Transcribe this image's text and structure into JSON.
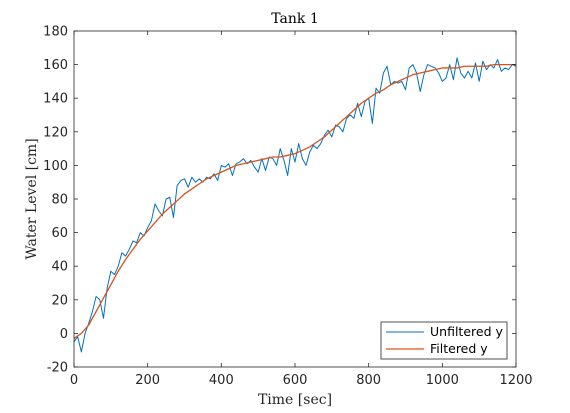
{
  "chart_data": {
    "type": "line",
    "title": "Tank 1",
    "xlabel": "Time [sec]",
    "ylabel": "Water Level [cm]",
    "xlim": [
      0,
      1200
    ],
    "ylim": [
      -20,
      180
    ],
    "xticks": [
      0,
      200,
      400,
      600,
      800,
      1000,
      1200
    ],
    "yticks": [
      -20,
      0,
      20,
      40,
      60,
      80,
      100,
      120,
      140,
      160,
      180
    ],
    "grid": false,
    "legend_location": "bottom-right",
    "series": [
      {
        "name": "Unfiltered y",
        "color": "#0072BD",
        "x": [
          0,
          10,
          20,
          30,
          40,
          50,
          60,
          70,
          80,
          90,
          100,
          110,
          120,
          130,
          140,
          150,
          160,
          170,
          180,
          190,
          200,
          210,
          220,
          230,
          240,
          250,
          260,
          270,
          280,
          290,
          300,
          310,
          320,
          330,
          340,
          350,
          360,
          370,
          380,
          390,
          400,
          410,
          420,
          430,
          440,
          450,
          460,
          470,
          480,
          490,
          500,
          510,
          520,
          530,
          540,
          550,
          560,
          570,
          580,
          590,
          600,
          610,
          620,
          630,
          640,
          650,
          660,
          670,
          680,
          690,
          700,
          710,
          720,
          730,
          740,
          750,
          760,
          770,
          780,
          790,
          800,
          810,
          820,
          830,
          840,
          850,
          860,
          870,
          880,
          890,
          900,
          910,
          920,
          930,
          940,
          950,
          960,
          970,
          980,
          990,
          1000,
          1010,
          1020,
          1030,
          1040,
          1050,
          1060,
          1070,
          1080,
          1090,
          1100,
          1110,
          1120,
          1130,
          1140,
          1150,
          1160,
          1170,
          1180,
          1190,
          1200
        ],
        "y": [
          -5,
          -2,
          -11,
          0,
          6,
          13,
          22,
          20,
          9,
          27,
          37,
          35,
          40,
          48,
          46,
          50,
          55,
          54,
          60,
          58,
          63,
          67,
          77,
          73,
          70,
          80,
          81,
          69,
          88,
          91,
          92,
          87,
          93,
          90,
          92,
          90,
          93,
          92,
          95,
          91,
          100,
          99,
          101,
          94,
          101,
          102,
          104,
          101,
          103,
          99,
          96,
          104,
          97,
          105,
          104,
          100,
          110,
          103,
          94,
          110,
          102,
          113,
          104,
          100,
          108,
          112,
          110,
          113,
          118,
          121,
          117,
          124,
          123,
          120,
          128,
          130,
          128,
          137,
          129,
          138,
          140,
          125,
          146,
          143,
          155,
          159,
          148,
          150,
          149,
          150,
          145,
          158,
          160,
          155,
          144,
          154,
          160,
          159,
          158,
          155,
          150,
          152,
          160,
          151,
          164,
          155,
          152,
          156,
          152,
          161,
          150,
          162,
          157,
          160,
          158,
          163,
          156,
          158,
          157,
          160,
          159
        ]
      },
      {
        "name": "Filtered y",
        "color": "#D95319",
        "x": [
          0,
          20,
          40,
          60,
          80,
          100,
          120,
          140,
          160,
          180,
          200,
          220,
          240,
          260,
          280,
          300,
          320,
          340,
          360,
          380,
          400,
          420,
          440,
          460,
          480,
          500,
          520,
          540,
          560,
          580,
          600,
          620,
          640,
          660,
          680,
          700,
          720,
          740,
          760,
          780,
          800,
          820,
          840,
          860,
          880,
          900,
          920,
          940,
          960,
          980,
          1000,
          1020,
          1040,
          1060,
          1080,
          1100,
          1120,
          1140,
          1160,
          1180,
          1200
        ],
        "y": [
          -3,
          0,
          5,
          13,
          21,
          29,
          37,
          44,
          50,
          56,
          61,
          66,
          71,
          75,
          79,
          83,
          86,
          89,
          92,
          94,
          96,
          98,
          100,
          101,
          102,
          103,
          104,
          105,
          105,
          106,
          107,
          109,
          111,
          114,
          117,
          121,
          125,
          129,
          133,
          137,
          140,
          143,
          145,
          148,
          150,
          152,
          154,
          155,
          156,
          157,
          158,
          158,
          158,
          159,
          159,
          159,
          159,
          160,
          160,
          160,
          160
        ]
      }
    ]
  }
}
